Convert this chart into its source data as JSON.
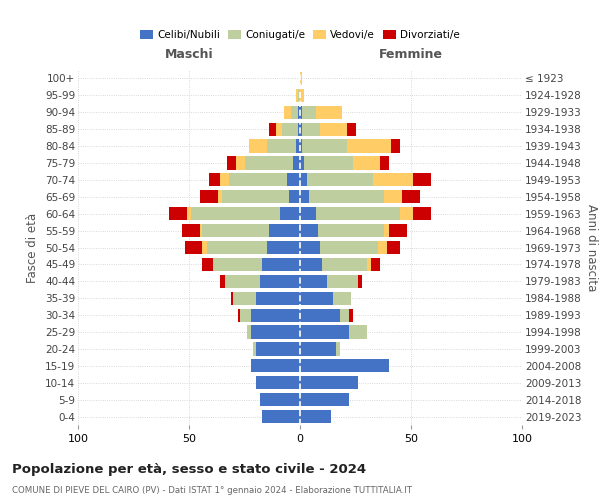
{
  "age_groups": [
    "0-4",
    "5-9",
    "10-14",
    "15-19",
    "20-24",
    "25-29",
    "30-34",
    "35-39",
    "40-44",
    "45-49",
    "50-54",
    "55-59",
    "60-64",
    "65-69",
    "70-74",
    "75-79",
    "80-84",
    "85-89",
    "90-94",
    "95-99",
    "100+"
  ],
  "birth_years": [
    "2019-2023",
    "2014-2018",
    "2009-2013",
    "2004-2008",
    "1999-2003",
    "1994-1998",
    "1989-1993",
    "1984-1988",
    "1979-1983",
    "1974-1978",
    "1969-1973",
    "1964-1968",
    "1959-1963",
    "1954-1958",
    "1949-1953",
    "1944-1948",
    "1939-1943",
    "1934-1938",
    "1929-1933",
    "1924-1928",
    "≤ 1923"
  ],
  "colors": {
    "celibi": "#4472C4",
    "coniugati": "#BFCE9E",
    "vedovi": "#FFCC66",
    "divorziati": "#CC0000"
  },
  "maschi_celibi": [
    17,
    18,
    20,
    22,
    20,
    22,
    22,
    20,
    18,
    17,
    15,
    14,
    9,
    5,
    6,
    3,
    2,
    1,
    1,
    0,
    0
  ],
  "maschi_coniugati": [
    0,
    0,
    0,
    0,
    1,
    2,
    5,
    10,
    16,
    22,
    27,
    30,
    40,
    30,
    26,
    22,
    13,
    7,
    3,
    1,
    0
  ],
  "maschi_vedovi": [
    0,
    0,
    0,
    0,
    0,
    0,
    0,
    0,
    0,
    0,
    2,
    1,
    2,
    2,
    4,
    4,
    8,
    3,
    3,
    1,
    0
  ],
  "maschi_divorziati": [
    0,
    0,
    0,
    0,
    0,
    0,
    1,
    1,
    2,
    5,
    8,
    8,
    8,
    8,
    5,
    4,
    0,
    3,
    0,
    0,
    0
  ],
  "femmine_celibi": [
    14,
    22,
    26,
    40,
    16,
    22,
    18,
    15,
    12,
    10,
    9,
    8,
    7,
    4,
    3,
    2,
    1,
    1,
    1,
    0,
    0
  ],
  "femmine_coniugati": [
    0,
    0,
    0,
    0,
    2,
    8,
    4,
    8,
    14,
    20,
    26,
    30,
    38,
    34,
    30,
    22,
    20,
    8,
    6,
    0,
    0
  ],
  "femmine_vedovi": [
    0,
    0,
    0,
    0,
    0,
    0,
    0,
    0,
    0,
    2,
    4,
    2,
    6,
    8,
    18,
    12,
    20,
    12,
    12,
    2,
    1
  ],
  "femmine_divorziati": [
    0,
    0,
    0,
    0,
    0,
    0,
    2,
    0,
    2,
    4,
    6,
    8,
    8,
    8,
    8,
    4,
    4,
    4,
    0,
    0,
    0
  ],
  "title": "Popolazione per età, sesso e stato civile - 2024",
  "subtitle": "COMUNE DI PIEVE DEL CAIRO (PV) - Dati ISTAT 1° gennaio 2024 - Elaborazione TUTTITALIA.IT",
  "header_left": "Maschi",
  "header_right": "Femmine",
  "ylabel_left": "Fasce di età",
  "ylabel_right": "Anni di nascita",
  "legend_labels": [
    "Celibi/Nubili",
    "Coniugati/e",
    "Vedovi/e",
    "Divorziati/e"
  ],
  "bg_color": "#FFFFFF",
  "grid_color": "#CCCCCC"
}
